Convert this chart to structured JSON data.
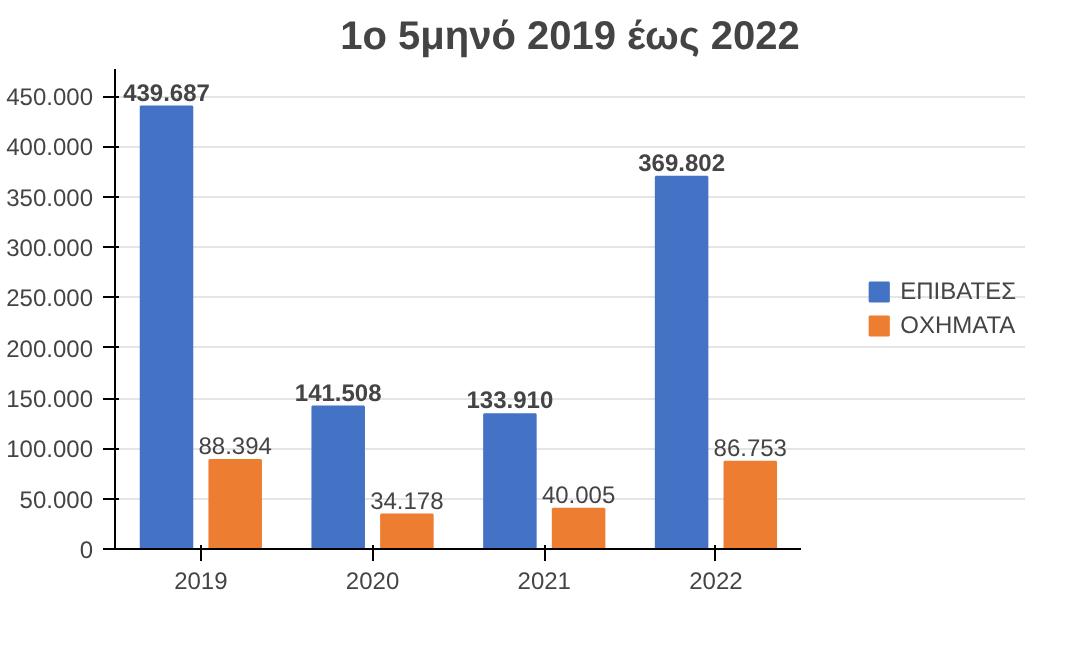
{
  "chart_data": {
    "type": "bar",
    "title": "1ο 5μηνό 2019 έως 2022",
    "categories": [
      "2019",
      "2020",
      "2021",
      "2022"
    ],
    "series": [
      {
        "name": "ΕΠΙΒΑΤΕΣ",
        "color": "#4472c4",
        "values": [
          439687,
          141508,
          133910,
          369802
        ],
        "value_labels": [
          "439.687",
          "141.508",
          "133.910",
          "369.802"
        ]
      },
      {
        "name": "ΟΧΗΜΑΤΑ",
        "color": "#ed7d31",
        "values": [
          88394,
          34178,
          40005,
          86753
        ],
        "value_labels": [
          "88.394",
          "34.178",
          "40.005",
          "86.753"
        ]
      }
    ],
    "ylim": [
      0,
      450000
    ],
    "yticks": [
      {
        "value": 0,
        "label": "0"
      },
      {
        "value": 50000,
        "label": "50.000"
      },
      {
        "value": 100000,
        "label": "100.000"
      },
      {
        "value": 150000,
        "label": "150.000"
      },
      {
        "value": 200000,
        "label": "200.000"
      },
      {
        "value": 250000,
        "label": "250.000"
      },
      {
        "value": 300000,
        "label": "300.000"
      },
      {
        "value": 350000,
        "label": "350.000"
      },
      {
        "value": 400000,
        "label": "400.000"
      },
      {
        "value": 450000,
        "label": "450.000"
      }
    ],
    "grid": "y",
    "legend": "right"
  }
}
